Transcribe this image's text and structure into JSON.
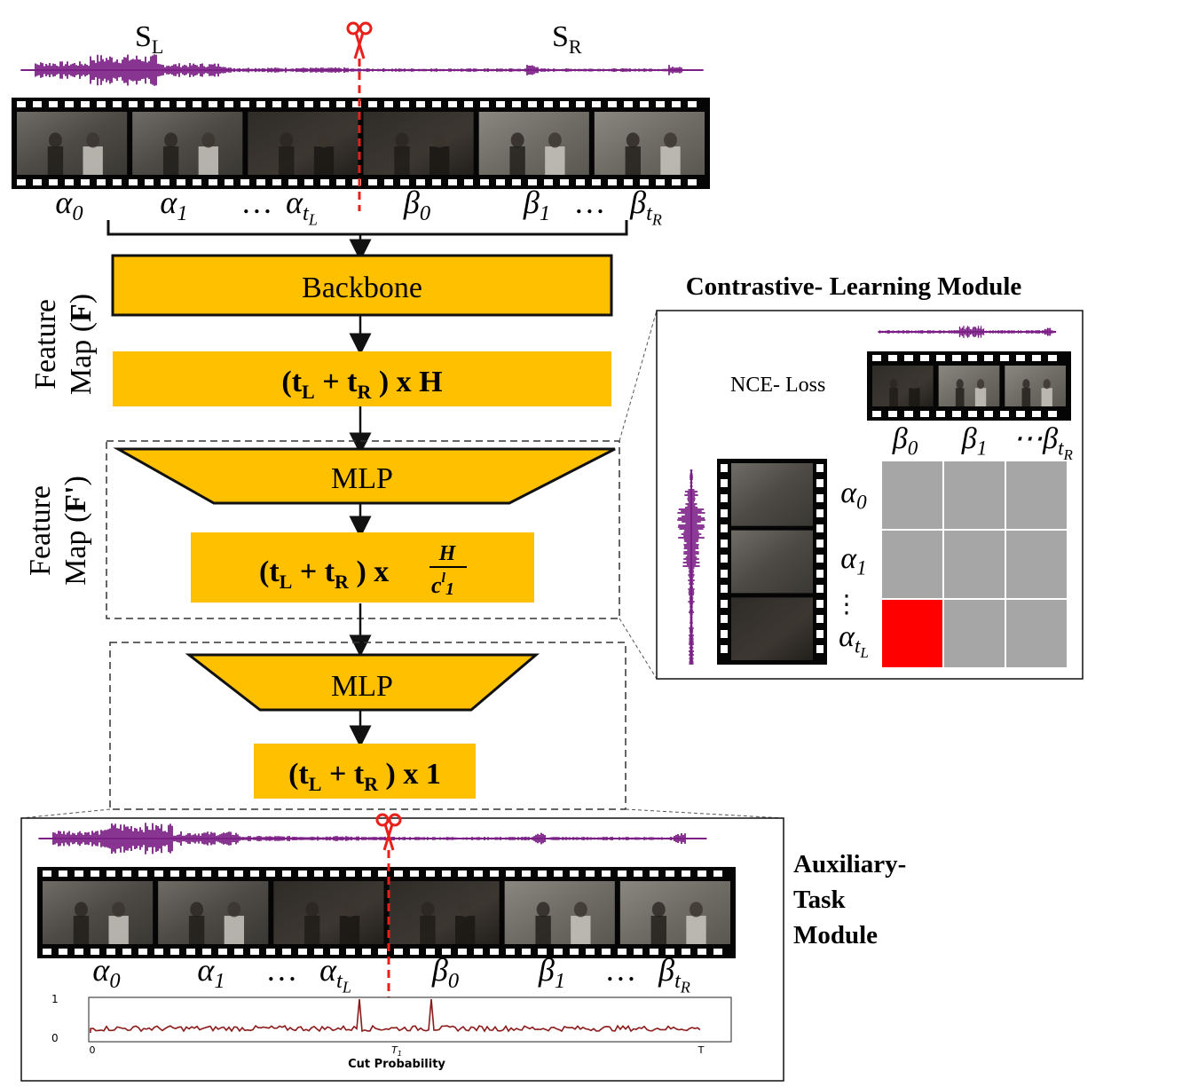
{
  "top": {
    "segment_left": "S",
    "segment_left_sub": "L",
    "segment_right": "S",
    "segment_right_sub": "R",
    "shot_labels": [
      {
        "base": "α",
        "sub": "0"
      },
      {
        "base": "α",
        "sub": "1"
      },
      {
        "base": "…",
        "sub": ""
      },
      {
        "base": "α",
        "sub": "t",
        "subsub": "L"
      },
      {
        "base": "β",
        "sub": "0"
      },
      {
        "base": "β",
        "sub": "1"
      },
      {
        "base": "…",
        "sub": ""
      },
      {
        "base": "β",
        "sub": "t",
        "subsub": "R"
      }
    ]
  },
  "pipeline": {
    "backbone_label": "Backbone",
    "feature_map_f": {
      "line1": "Feature",
      "line2": "Map (",
      "bold": "F",
      "close": ")"
    },
    "feature_map_f2": {
      "line1": "Feature",
      "line2": "Map (",
      "bold": "F'",
      "close": ")"
    },
    "dim1": {
      "open": "(t",
      "sub1": "L",
      "plus": " + t",
      "sub2": "R",
      "rest": " ) x H"
    },
    "mlp1_label": "MLP",
    "dim2": {
      "open": "(t",
      "sub1": "L",
      "plus": " + t",
      "sub2": "R",
      "rest": " ) x ",
      "frac_num": "H",
      "frac_den": "c",
      "frac_den_sup": "l",
      "frac_den_sub": "1"
    },
    "mlp2_label": "MLP",
    "dim3": {
      "open": "(t",
      "sub1": "L",
      "plus": " + t",
      "sub2": "R",
      "rest": " ) x 1"
    }
  },
  "contrastive": {
    "title": "Contrastive- Learning Module",
    "loss_label": "NCE- Loss",
    "col_labels": [
      {
        "base": "β",
        "sub": "0"
      },
      {
        "base": "β",
        "sub": "1"
      },
      {
        "base": "⋯β",
        "sub": "t",
        "subsub": "R"
      }
    ],
    "row_labels": [
      {
        "base": "α",
        "sub": "0"
      },
      {
        "base": "α",
        "sub": "1"
      },
      {
        "base": "α",
        "sub": "t",
        "subsub": "L"
      }
    ],
    "vdots": "⋮",
    "cell_color": "#a6a6a6",
    "highlight_color": "#ff0000",
    "highlight_row": 2,
    "highlight_col": 0
  },
  "auxiliary": {
    "title_lines": [
      "Auxiliary-",
      "Task",
      "Module"
    ],
    "shot_labels": [
      {
        "base": "α",
        "sub": "0"
      },
      {
        "base": "α",
        "sub": "1"
      },
      {
        "base": "…",
        "sub": ""
      },
      {
        "base": "α",
        "sub": "t",
        "subsub": "L"
      },
      {
        "base": "β",
        "sub": "0"
      },
      {
        "base": "β",
        "sub": "1"
      },
      {
        "base": "…",
        "sub": ""
      },
      {
        "base": "β",
        "sub": "t",
        "subsub": "R"
      }
    ],
    "plot": {
      "y_ticks": [
        "1",
        "0"
      ],
      "x_ticks": [
        "0",
        "T",
        "T"
      ],
      "x_tick_mid_sub": "1",
      "xlabel": "Cut Probability"
    }
  },
  "colors": {
    "box_fill": "#ffc000",
    "waveform": "#7b1f86",
    "cut_line": "#e8201a",
    "plot_line": "#8b1a1a"
  }
}
